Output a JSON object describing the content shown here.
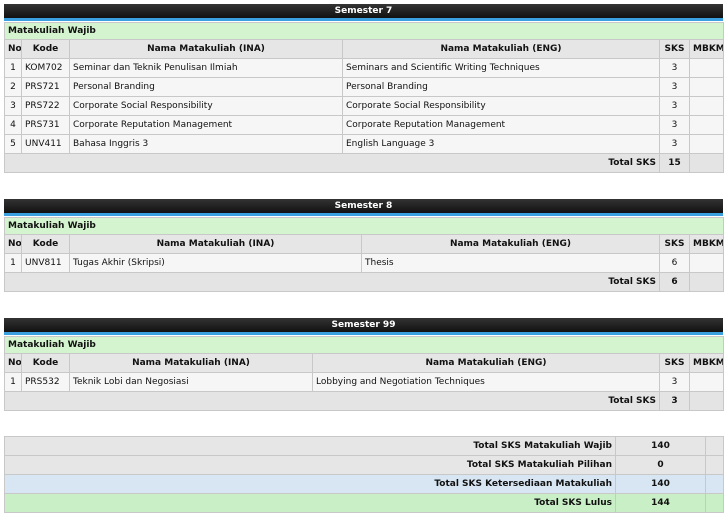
{
  "semesters": [
    {
      "title": "Semester 7",
      "group": "Matakuliah Wajib",
      "columns": [
        "No",
        "Kode",
        "Nama Matakuliah (INA)",
        "Nama Matakuliah (ENG)",
        "SKS",
        "MBKM"
      ],
      "rows": [
        [
          1,
          "KOM702",
          "Seminar dan Teknik Penulisan Ilmiah",
          "Seminars and Scientific Writing Techniques",
          3
        ],
        [
          2,
          "PRS721",
          "Personal Branding",
          "Personal Branding",
          3
        ],
        [
          3,
          "PRS722",
          "Corporate Social Responsibility",
          "Corporate Social Responsibility",
          3
        ],
        [
          4,
          "PRS731",
          "Corporate Reputation Management",
          "Corporate Reputation Management",
          3
        ],
        [
          5,
          "UNV411",
          "Bahasa Inggris 3",
          "English Language 3",
          3
        ]
      ],
      "total_label": "Total SKS",
      "total": 15
    },
    {
      "title": "Semester 8",
      "group": "Matakuliah Wajib",
      "columns": [
        "No",
        "Kode",
        "Nama Matakuliah (INA)",
        "Nama Matakuliah (ENG)",
        "SKS",
        "MBKM"
      ],
      "rows": [
        [
          1,
          "UNV811",
          "Tugas Akhir (Skripsi)",
          "Thesis",
          6
        ]
      ],
      "total_label": "Total SKS",
      "total": 6
    },
    {
      "title": "Semester 99",
      "group": "Matakuliah Wajib",
      "columns": [
        "No",
        "Kode",
        "Nama Matakuliah (INA)",
        "Nama Matakuliah (ENG)",
        "SKS",
        "MBKM"
      ],
      "rows": [
        [
          1,
          "PRS532",
          "Teknik Lobi dan Negosiasi",
          "Lobbying and Negotiation Techniques",
          3
        ]
      ],
      "total_label": "Total SKS",
      "total": 3
    }
  ],
  "summary": [
    {
      "label": "Total SKS Matakuliah Wajib",
      "value": 140
    },
    {
      "label": "Total SKS Matakuliah Pilihan",
      "value": 0
    },
    {
      "label": "Total SKS Ketersediaan Matakuliah",
      "value": 140
    },
    {
      "label": "Total SKS Lulus",
      "value": 144
    }
  ]
}
